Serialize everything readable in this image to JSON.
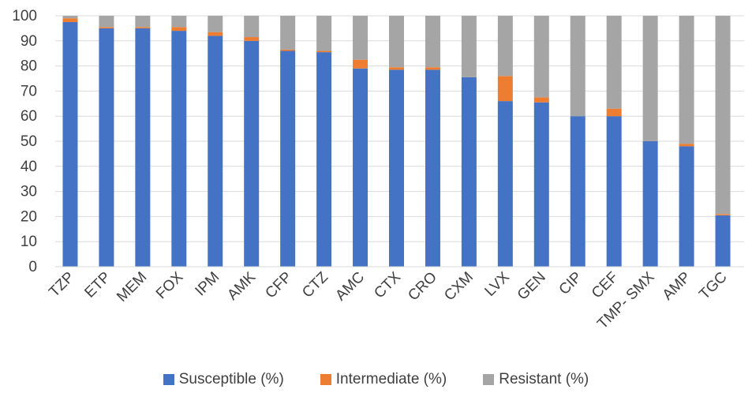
{
  "chart_data": {
    "type": "bar",
    "stacked": true,
    "orientation": "vertical",
    "categories": [
      "TZP",
      "ETP",
      "MEM",
      "FOX",
      "IPM",
      "AMK",
      "CFP",
      "CTZ",
      "AMC",
      "CTX",
      "CRO",
      "CXM",
      "LVX",
      "GEN",
      "CIP",
      "CEF",
      "TMP- SMX",
      "AMP",
      "TGC"
    ],
    "series": [
      {
        "name": "Susceptible (%)",
        "color": "#4472c4",
        "values": [
          97.5,
          95,
          95,
          94,
          92,
          90,
          86,
          85.5,
          79,
          78.5,
          78.5,
          75.5,
          66,
          65.5,
          60,
          60,
          50,
          48,
          20.5
        ]
      },
      {
        "name": "Intermediate (%)",
        "color": "#ed7d31",
        "values": [
          1.5,
          0.5,
          0.5,
          1.5,
          1.5,
          1.5,
          0.5,
          0.5,
          3.5,
          1,
          1,
          0,
          10,
          2,
          0,
          3,
          0,
          1,
          0.5
        ]
      },
      {
        "name": "Resistant (%)",
        "color": "#a5a5a5",
        "values": [
          1,
          4.5,
          4.5,
          4.5,
          6.5,
          8.5,
          13.5,
          14,
          17.5,
          20.5,
          20.5,
          24.5,
          24,
          32.5,
          40,
          37,
          50,
          51,
          79
        ]
      }
    ],
    "ylim": [
      0,
      100
    ],
    "yticks": [
      0,
      10,
      20,
      30,
      40,
      50,
      60,
      70,
      80,
      90,
      100
    ],
    "ytick_labels": [
      "0",
      "10",
      "20",
      "30",
      "40",
      "50",
      "60",
      "70",
      "80",
      "90",
      "100"
    ],
    "grid": true,
    "legend_position": "bottom"
  }
}
